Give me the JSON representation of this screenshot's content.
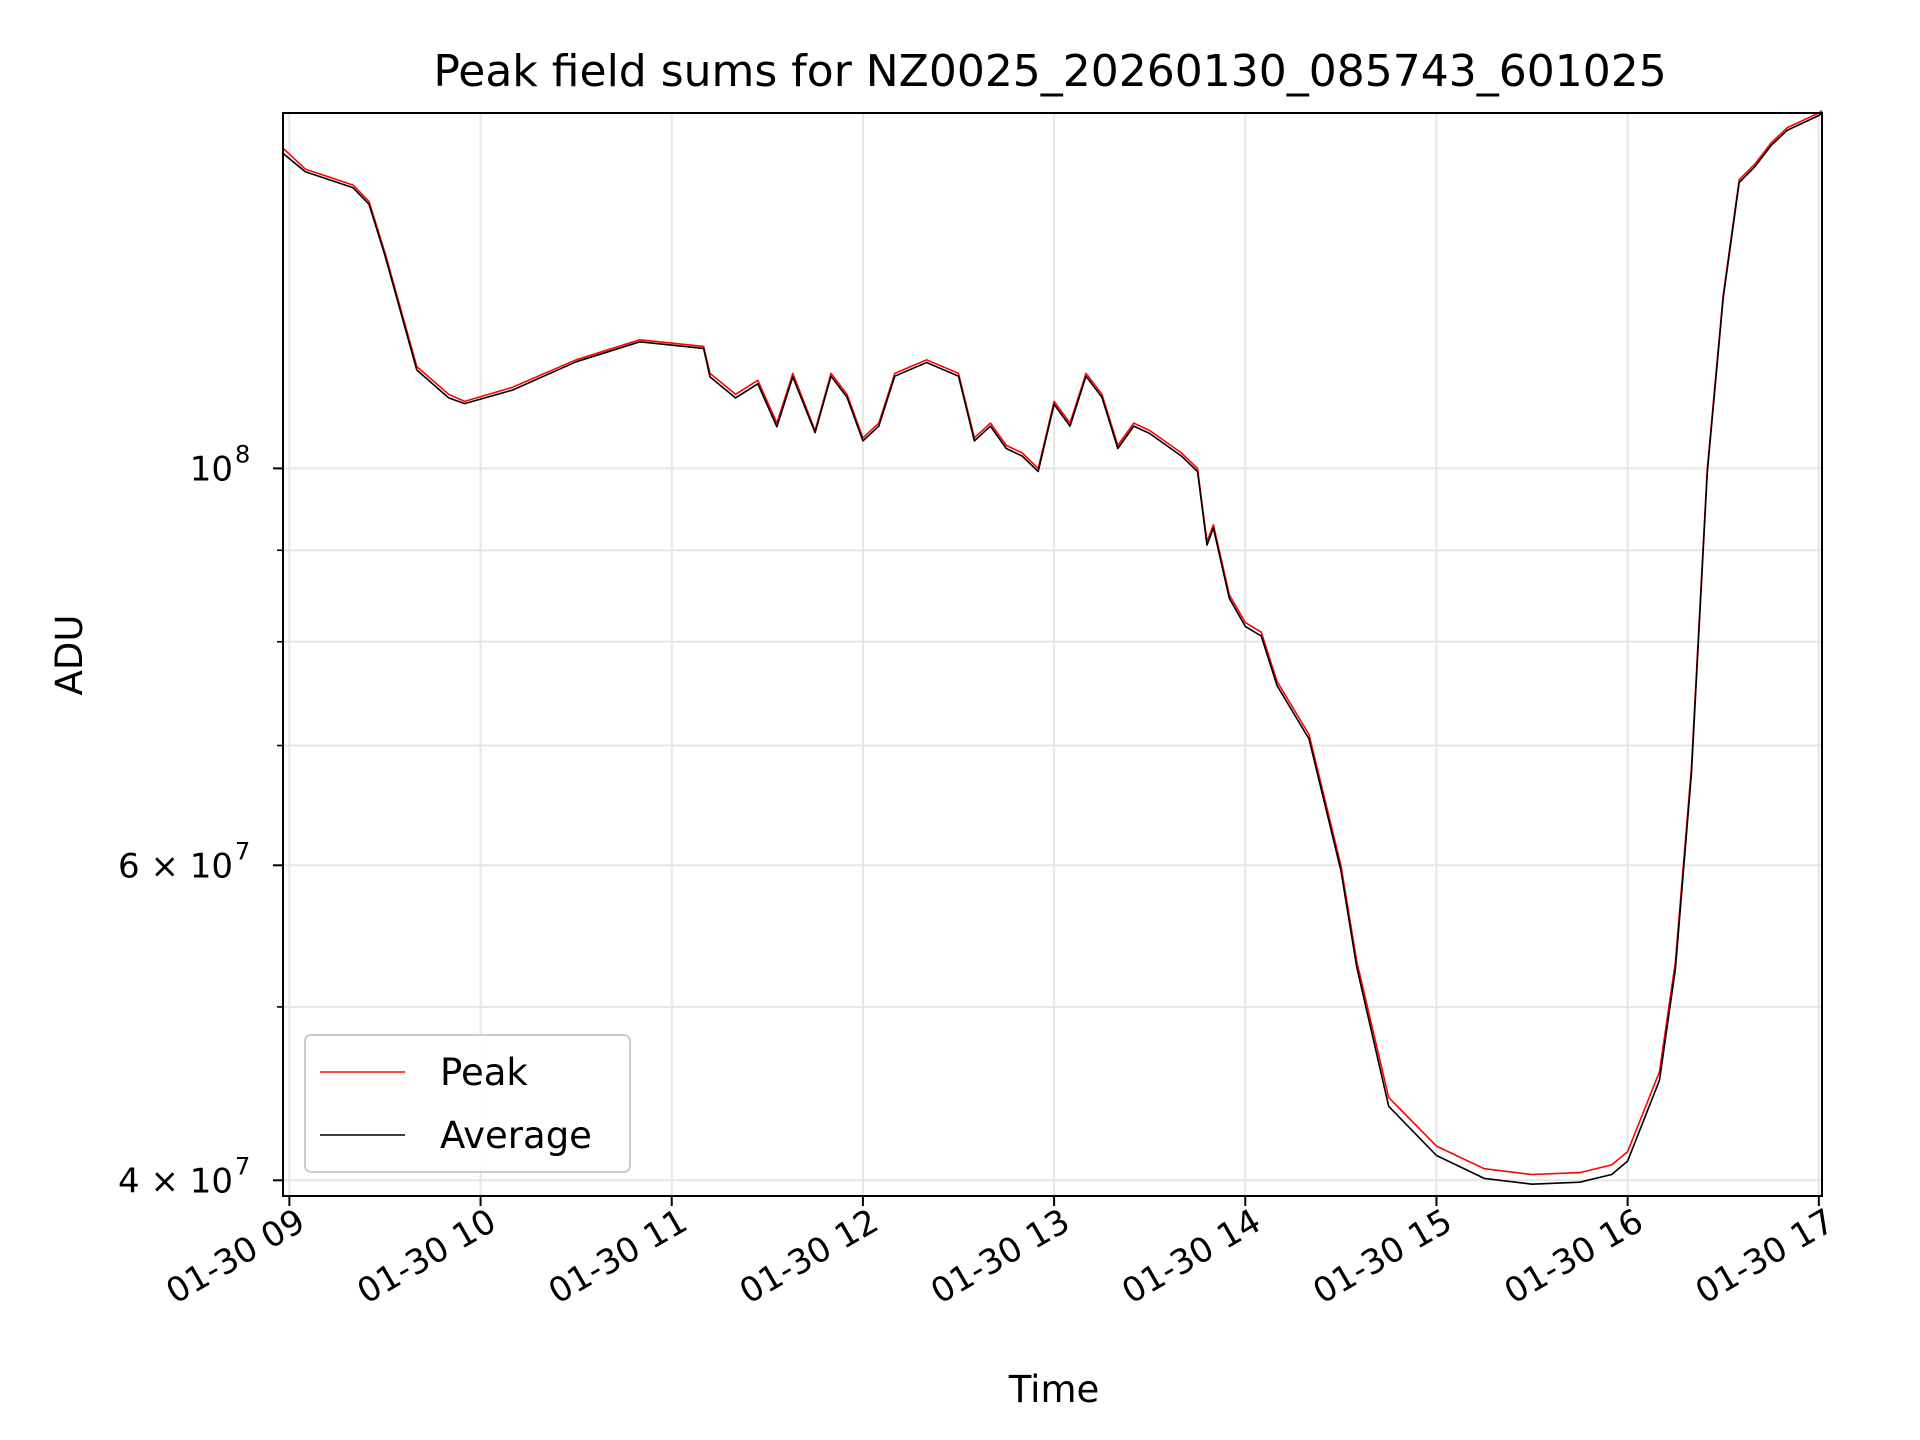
{
  "chart_data": {
    "type": "line",
    "title": "Peak field sums for NZ0025_20260130_085743_601025",
    "xlabel": "Time",
    "ylabel": "ADU",
    "x_scale": "time",
    "y_scale": "log",
    "xlim": [
      "2026-01-30 08:58",
      "2026-01-30 17:01"
    ],
    "ylim": [
      39200000,
      158000000
    ],
    "x_ticks": [
      "01-30 09",
      "01-30 10",
      "01-30 11",
      "01-30 12",
      "01-30 13",
      "01-30 14",
      "01-30 15",
      "01-30 16",
      "01-30 17"
    ],
    "y_major_ticks": [
      {
        "value": 100000000,
        "label": "10",
        "exp": "8",
        "mant": ""
      },
      {
        "value": 60000000,
        "label": "6 × 10",
        "exp": "7",
        "mant": "6 × "
      },
      {
        "value": 40000000,
        "label": "4 × 10",
        "exp": "7",
        "mant": "4 × "
      }
    ],
    "y_minor_ticks": [
      50000000,
      70000000,
      80000000,
      90000000
    ],
    "grid": true,
    "legend_position": "lower-left",
    "series": [
      {
        "name": "Peak",
        "color": "#ff0000",
        "x": [
          "2026-01-30 08:58",
          "2026-01-30 09:05",
          "2026-01-30 09:15",
          "2026-01-30 09:20",
          "2026-01-30 09:25",
          "2026-01-30 09:30",
          "2026-01-30 09:40",
          "2026-01-30 09:50",
          "2026-01-30 09:55",
          "2026-01-30 10:10",
          "2026-01-30 10:30",
          "2026-01-30 10:50",
          "2026-01-30 11:10",
          "2026-01-30 11:12",
          "2026-01-30 11:20",
          "2026-01-30 11:27",
          "2026-01-30 11:33",
          "2026-01-30 11:38",
          "2026-01-30 11:45",
          "2026-01-30 11:50",
          "2026-01-30 11:55",
          "2026-01-30 12:00",
          "2026-01-30 12:05",
          "2026-01-30 12:10",
          "2026-01-30 12:15",
          "2026-01-30 12:20",
          "2026-01-30 12:30",
          "2026-01-30 12:35",
          "2026-01-30 12:40",
          "2026-01-30 12:45",
          "2026-01-30 12:50",
          "2026-01-30 12:55",
          "2026-01-30 13:00",
          "2026-01-30 13:05",
          "2026-01-30 13:10",
          "2026-01-30 13:15",
          "2026-01-30 13:20",
          "2026-01-30 13:25",
          "2026-01-30 13:30",
          "2026-01-30 13:40",
          "2026-01-30 13:45",
          "2026-01-30 13:48",
          "2026-01-30 13:50",
          "2026-01-30 13:55",
          "2026-01-30 14:00",
          "2026-01-30 14:05",
          "2026-01-30 14:10",
          "2026-01-30 14:20",
          "2026-01-30 14:30",
          "2026-01-30 14:35",
          "2026-01-30 14:45",
          "2026-01-30 15:00",
          "2026-01-30 15:15",
          "2026-01-30 15:30",
          "2026-01-30 15:45",
          "2026-01-30 15:55",
          "2026-01-30 16:00",
          "2026-01-30 16:10",
          "2026-01-30 16:15",
          "2026-01-30 16:20",
          "2026-01-30 16:25",
          "2026-01-30 16:30",
          "2026-01-30 16:35",
          "2026-01-30 16:40",
          "2026-01-30 16:45",
          "2026-01-30 16:50",
          "2026-01-30 17:00",
          "2026-01-30 17:01"
        ],
        "values": [
          151000000,
          147000000,
          145000000,
          144000000,
          141000000,
          132000000,
          114000000,
          110000000,
          109000000,
          111000000,
          115000000,
          118000000,
          117000000,
          113000000,
          110000000,
          112000000,
          106000000,
          113000000,
          105000000,
          113000000,
          110000000,
          104000000,
          106000000,
          113000000,
          114000000,
          115000000,
          113000000,
          104000000,
          106000000,
          103000000,
          102000000,
          100000000,
          109000000,
          106000000,
          113000000,
          110000000,
          103000000,
          106000000,
          105000000,
          102000000,
          100000000,
          91000000,
          93000000,
          85000000,
          82000000,
          81000000,
          76000000,
          71000000,
          60000000,
          53000000,
          44500000,
          41800000,
          40600000,
          40300000,
          40400000,
          40800000,
          41500000,
          46000000,
          53000000,
          68000000,
          100000000,
          125000000,
          145000000,
          148000000,
          152000000,
          155000000,
          158000000,
          158500000
        ]
      },
      {
        "name": "Average",
        "color": "#000000",
        "x": [
          "2026-01-30 08:58",
          "2026-01-30 09:05",
          "2026-01-30 09:15",
          "2026-01-30 09:20",
          "2026-01-30 09:25",
          "2026-01-30 09:30",
          "2026-01-30 09:40",
          "2026-01-30 09:50",
          "2026-01-30 09:55",
          "2026-01-30 10:10",
          "2026-01-30 10:30",
          "2026-01-30 10:50",
          "2026-01-30 11:10",
          "2026-01-30 11:12",
          "2026-01-30 11:20",
          "2026-01-30 11:27",
          "2026-01-30 11:33",
          "2026-01-30 11:38",
          "2026-01-30 11:45",
          "2026-01-30 11:50",
          "2026-01-30 11:55",
          "2026-01-30 12:00",
          "2026-01-30 12:05",
          "2026-01-30 12:10",
          "2026-01-30 12:15",
          "2026-01-30 12:20",
          "2026-01-30 12:30",
          "2026-01-30 12:35",
          "2026-01-30 12:40",
          "2026-01-30 12:45",
          "2026-01-30 12:50",
          "2026-01-30 12:55",
          "2026-01-30 13:00",
          "2026-01-30 13:05",
          "2026-01-30 13:10",
          "2026-01-30 13:15",
          "2026-01-30 13:20",
          "2026-01-30 13:25",
          "2026-01-30 13:30",
          "2026-01-30 13:40",
          "2026-01-30 13:45",
          "2026-01-30 13:48",
          "2026-01-30 13:50",
          "2026-01-30 13:55",
          "2026-01-30 14:00",
          "2026-01-30 14:05",
          "2026-01-30 14:10",
          "2026-01-30 14:20",
          "2026-01-30 14:30",
          "2026-01-30 14:35",
          "2026-01-30 14:45",
          "2026-01-30 15:00",
          "2026-01-30 15:15",
          "2026-01-30 15:30",
          "2026-01-30 15:45",
          "2026-01-30 15:55",
          "2026-01-30 16:00",
          "2026-01-30 16:10",
          "2026-01-30 16:15",
          "2026-01-30 16:20",
          "2026-01-30 16:25",
          "2026-01-30 16:30",
          "2026-01-30 16:35",
          "2026-01-30 16:40",
          "2026-01-30 16:45",
          "2026-01-30 16:50",
          "2026-01-30 17:00",
          "2026-01-30 17:01"
        ],
        "values": [
          150000000,
          146500000,
          144500000,
          143500000,
          140500000,
          131500000,
          113500000,
          109500000,
          108700000,
          110600000,
          114700000,
          117700000,
          116700000,
          112500000,
          109500000,
          111500000,
          105500000,
          112500000,
          104700000,
          112600000,
          109600000,
          103600000,
          105600000,
          112600000,
          113600000,
          114600000,
          112600000,
          103600000,
          105600000,
          102600000,
          101600000,
          99600000,
          108600000,
          105600000,
          112600000,
          109600000,
          102600000,
          105600000,
          104600000,
          101600000,
          99600000,
          90600000,
          92600000,
          84600000,
          81600000,
          80600000,
          75600000,
          70600000,
          59600000,
          52600000,
          44000000,
          41300000,
          40100000,
          39800000,
          39900000,
          40300000,
          41000000,
          45500000,
          52500000,
          67500000,
          99500000,
          124500000,
          144500000,
          147500000,
          151500000,
          154500000,
          157500000,
          158000000
        ]
      }
    ]
  }
}
